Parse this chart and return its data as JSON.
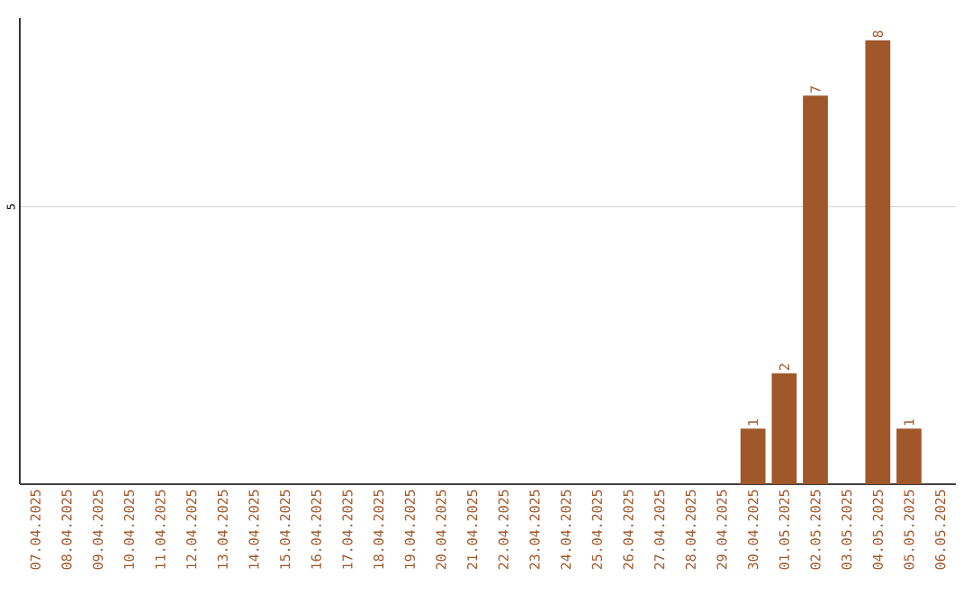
{
  "chart_data": {
    "type": "bar",
    "categories": [
      "07.04.2025",
      "08.04.2025",
      "09.04.2025",
      "10.04.2025",
      "11.04.2025",
      "12.04.2025",
      "13.04.2025",
      "14.04.2025",
      "15.04.2025",
      "16.04.2025",
      "17.04.2025",
      "18.04.2025",
      "19.04.2025",
      "20.04.2025",
      "21.04.2025",
      "22.04.2025",
      "23.04.2025",
      "24.04.2025",
      "25.04.2025",
      "26.04.2025",
      "27.04.2025",
      "28.04.2025",
      "29.04.2025",
      "30.04.2025",
      "01.05.2025",
      "02.05.2025",
      "03.05.2025",
      "04.05.2025",
      "05.05.2025",
      "06.05.2025"
    ],
    "values": [
      null,
      null,
      null,
      null,
      null,
      null,
      null,
      null,
      null,
      null,
      null,
      null,
      null,
      null,
      null,
      null,
      null,
      null,
      null,
      null,
      null,
      null,
      null,
      1,
      2,
      7,
      null,
      8,
      1,
      null
    ],
    "color": "#a0572a",
    "ylim": [
      0,
      8.4
    ],
    "yticks": [
      5
    ],
    "grid": "y",
    "data_labels": true
  }
}
